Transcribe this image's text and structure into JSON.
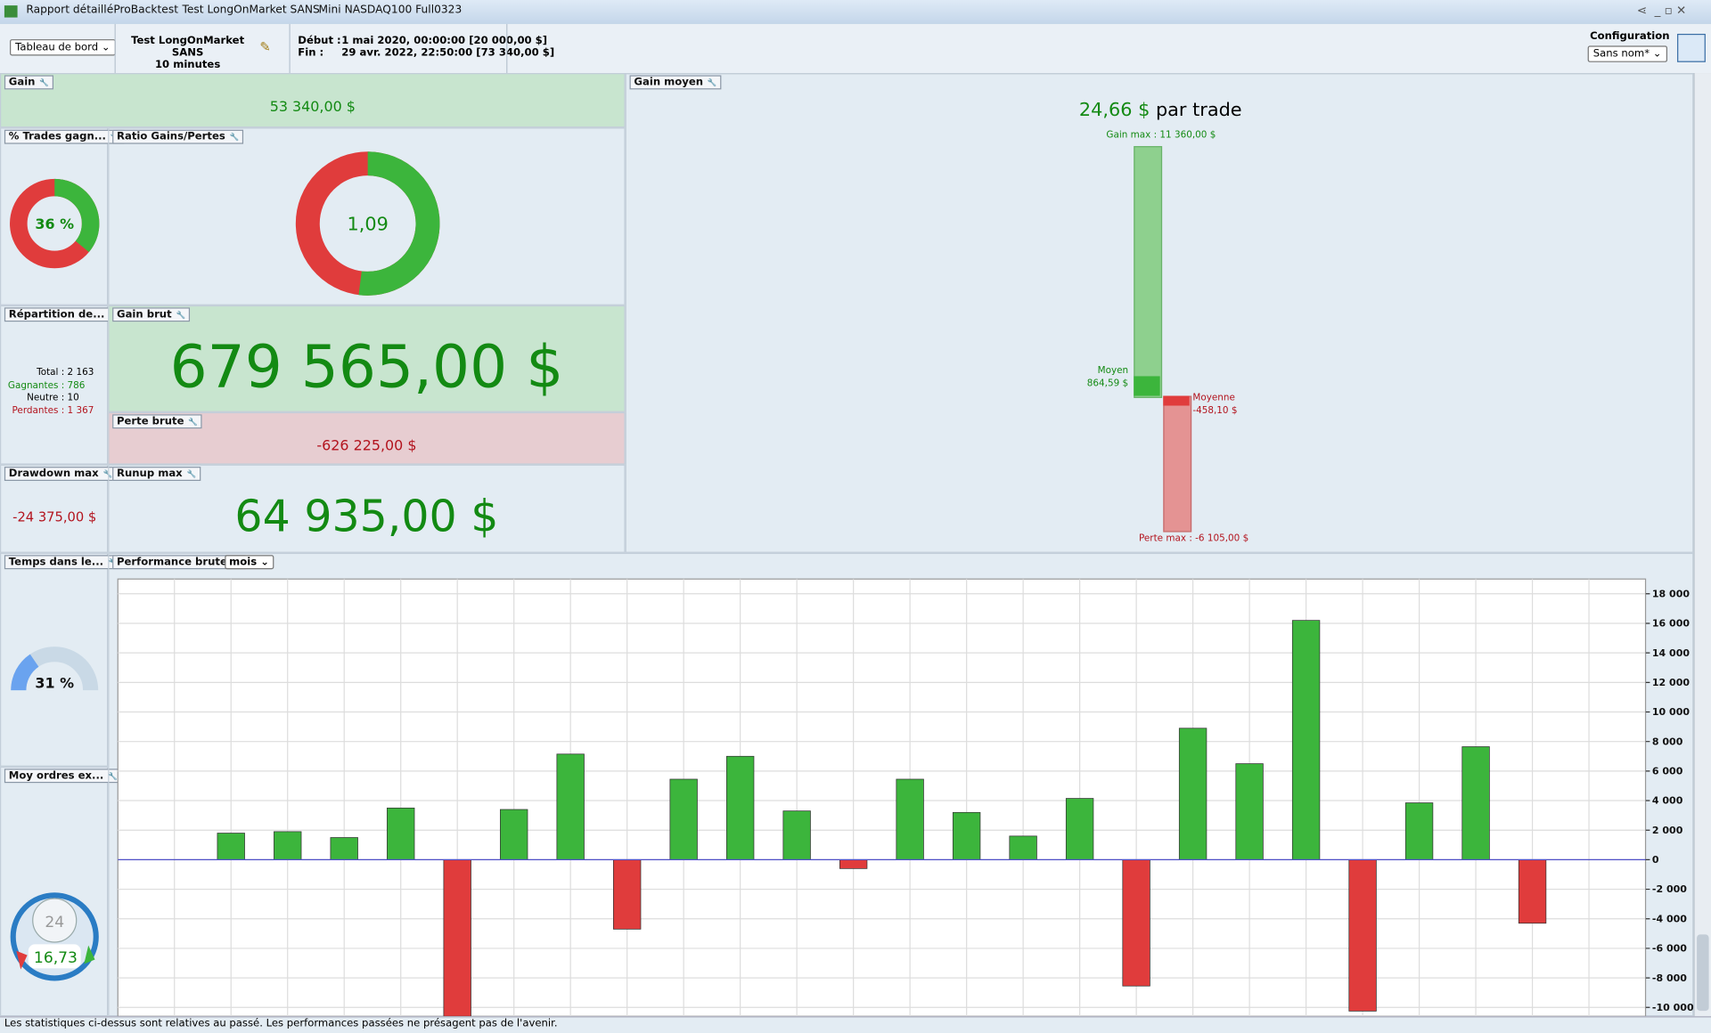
{
  "tabs": [
    "Rapport détaillé",
    "ProBacktest",
    "Test LongOnMarket SANS",
    "Mini NASDAQ100 Full0323"
  ],
  "toolbar": {
    "dashboard_select": "Tableau de bord",
    "strategy_name": "Test LongOnMarket SANS",
    "timeframe": "10 minutes",
    "start_label": "Début :",
    "start_value": "1 mai 2020, 00:00:00",
    "start_capital": "[20 000,00 $]",
    "end_label": "Fin :",
    "end_value": "29 avr. 2022, 22:50:00",
    "end_capital": "[73 340,00 $]",
    "config_label": "Configuration",
    "config_select": "Sans nom*"
  },
  "panels": {
    "gain": {
      "title": "Gain",
      "value": "53 340,00 $"
    },
    "win_rate": {
      "title": "% Trades gagn...",
      "value": "36 %"
    },
    "ratio": {
      "title": "Ratio Gains/Pertes",
      "value": "1,09"
    },
    "avg_gain": {
      "title": "Gain moyen",
      "value": "24,66 $",
      "unit": "par trade",
      "max_label": "Gain max : 11 360,00 $",
      "avg_win_label": "Moyen",
      "avg_win_value": "864,59 $",
      "avg_loss_label": "Moyenne",
      "avg_loss_value": "-458,10 $",
      "min_label": "Perte max : -6 105,00 $"
    },
    "distribution": {
      "title": "Répartition de...",
      "rows": [
        [
          "Total :",
          "2 163"
        ],
        [
          "Gagnantes :",
          "786"
        ],
        [
          "Neutre :",
          "10"
        ],
        [
          "Perdantes :",
          "1 367"
        ]
      ]
    },
    "gross_gain": {
      "title": "Gain brut",
      "value": "679 565,00 $"
    },
    "gross_loss": {
      "title": "Perte brute",
      "value": "-626 225,00 $"
    },
    "drawdown": {
      "title": "Drawdown max",
      "value": "-24 375,00 $"
    },
    "runup": {
      "title": "Runup max",
      "value": "64 935,00 $"
    },
    "time_in_market": {
      "title": "Temps dans le...",
      "value": "31 %"
    },
    "avg_orders": {
      "title": "Moy ordres ex...",
      "hours": "24",
      "value": "16,73"
    },
    "performance": {
      "title": "Performance brute",
      "period": "mois"
    }
  },
  "chart_data": {
    "type": "bar",
    "values": [
      1800,
      1900,
      1500,
      3500,
      -11000,
      3400,
      7150,
      -4700,
      5450,
      7000,
      3300,
      -600,
      5450,
      3200,
      1600,
      4150,
      -8550,
      8900,
      6500,
      16200,
      -10250,
      3850,
      7650,
      -4300
    ],
    "positive_color": "#3cb53c",
    "negative_color": "#e03c3c",
    "grid": true,
    "ylim": [
      -10600,
      19000
    ],
    "yticks": [
      {
        "value": -10000,
        "label": "-10 000"
      },
      {
        "value": -8000,
        "label": "-8 000"
      },
      {
        "value": -6000,
        "label": "-6 000"
      },
      {
        "value": -4000,
        "label": "-4 000"
      },
      {
        "value": -2000,
        "label": "-2 000"
      },
      0,
      {
        "value": 2000,
        "label": "2 000"
      },
      {
        "value": 4000,
        "label": "4 000"
      },
      {
        "value": 6000,
        "label": "6 000"
      },
      {
        "value": 8000,
        "label": "8 000"
      },
      {
        "value": 10000,
        "label": "10 000"
      },
      {
        "value": 12000,
        "label": "12 000"
      },
      {
        "value": 14000,
        "label": "14 000"
      },
      {
        "value": 16000,
        "label": "16 000"
      },
      {
        "value": 18000,
        "label": "18 000"
      }
    ]
  },
  "footer": "Les statistiques ci-dessus sont relatives au passé. Les performances passées ne présagent pas de l'avenir."
}
